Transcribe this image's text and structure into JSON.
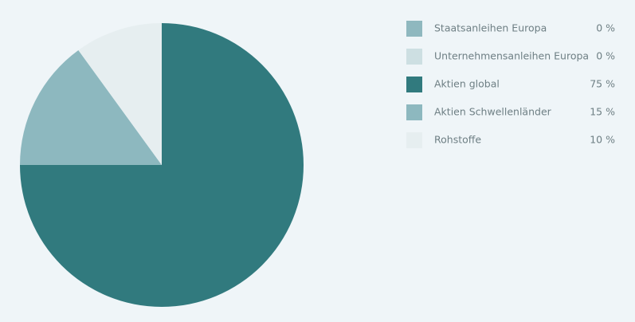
{
  "chart_data": {
    "type": "pie",
    "categories": [
      "Staatsanleihen Europa",
      "Unternehmensanleihen Europa",
      "Aktien global",
      "Aktien Schwellenländer",
      "Rohstoffe"
    ],
    "values": [
      0,
      0,
      75,
      15,
      10
    ],
    "value_labels": [
      "0 %",
      "0 %",
      "75 %",
      "15 %",
      "10 %"
    ],
    "colors": [
      "#8fb8bf",
      "#cddfe2",
      "#317a7e",
      "#8db8bf",
      "#e6eef0"
    ],
    "legend": "right"
  }
}
